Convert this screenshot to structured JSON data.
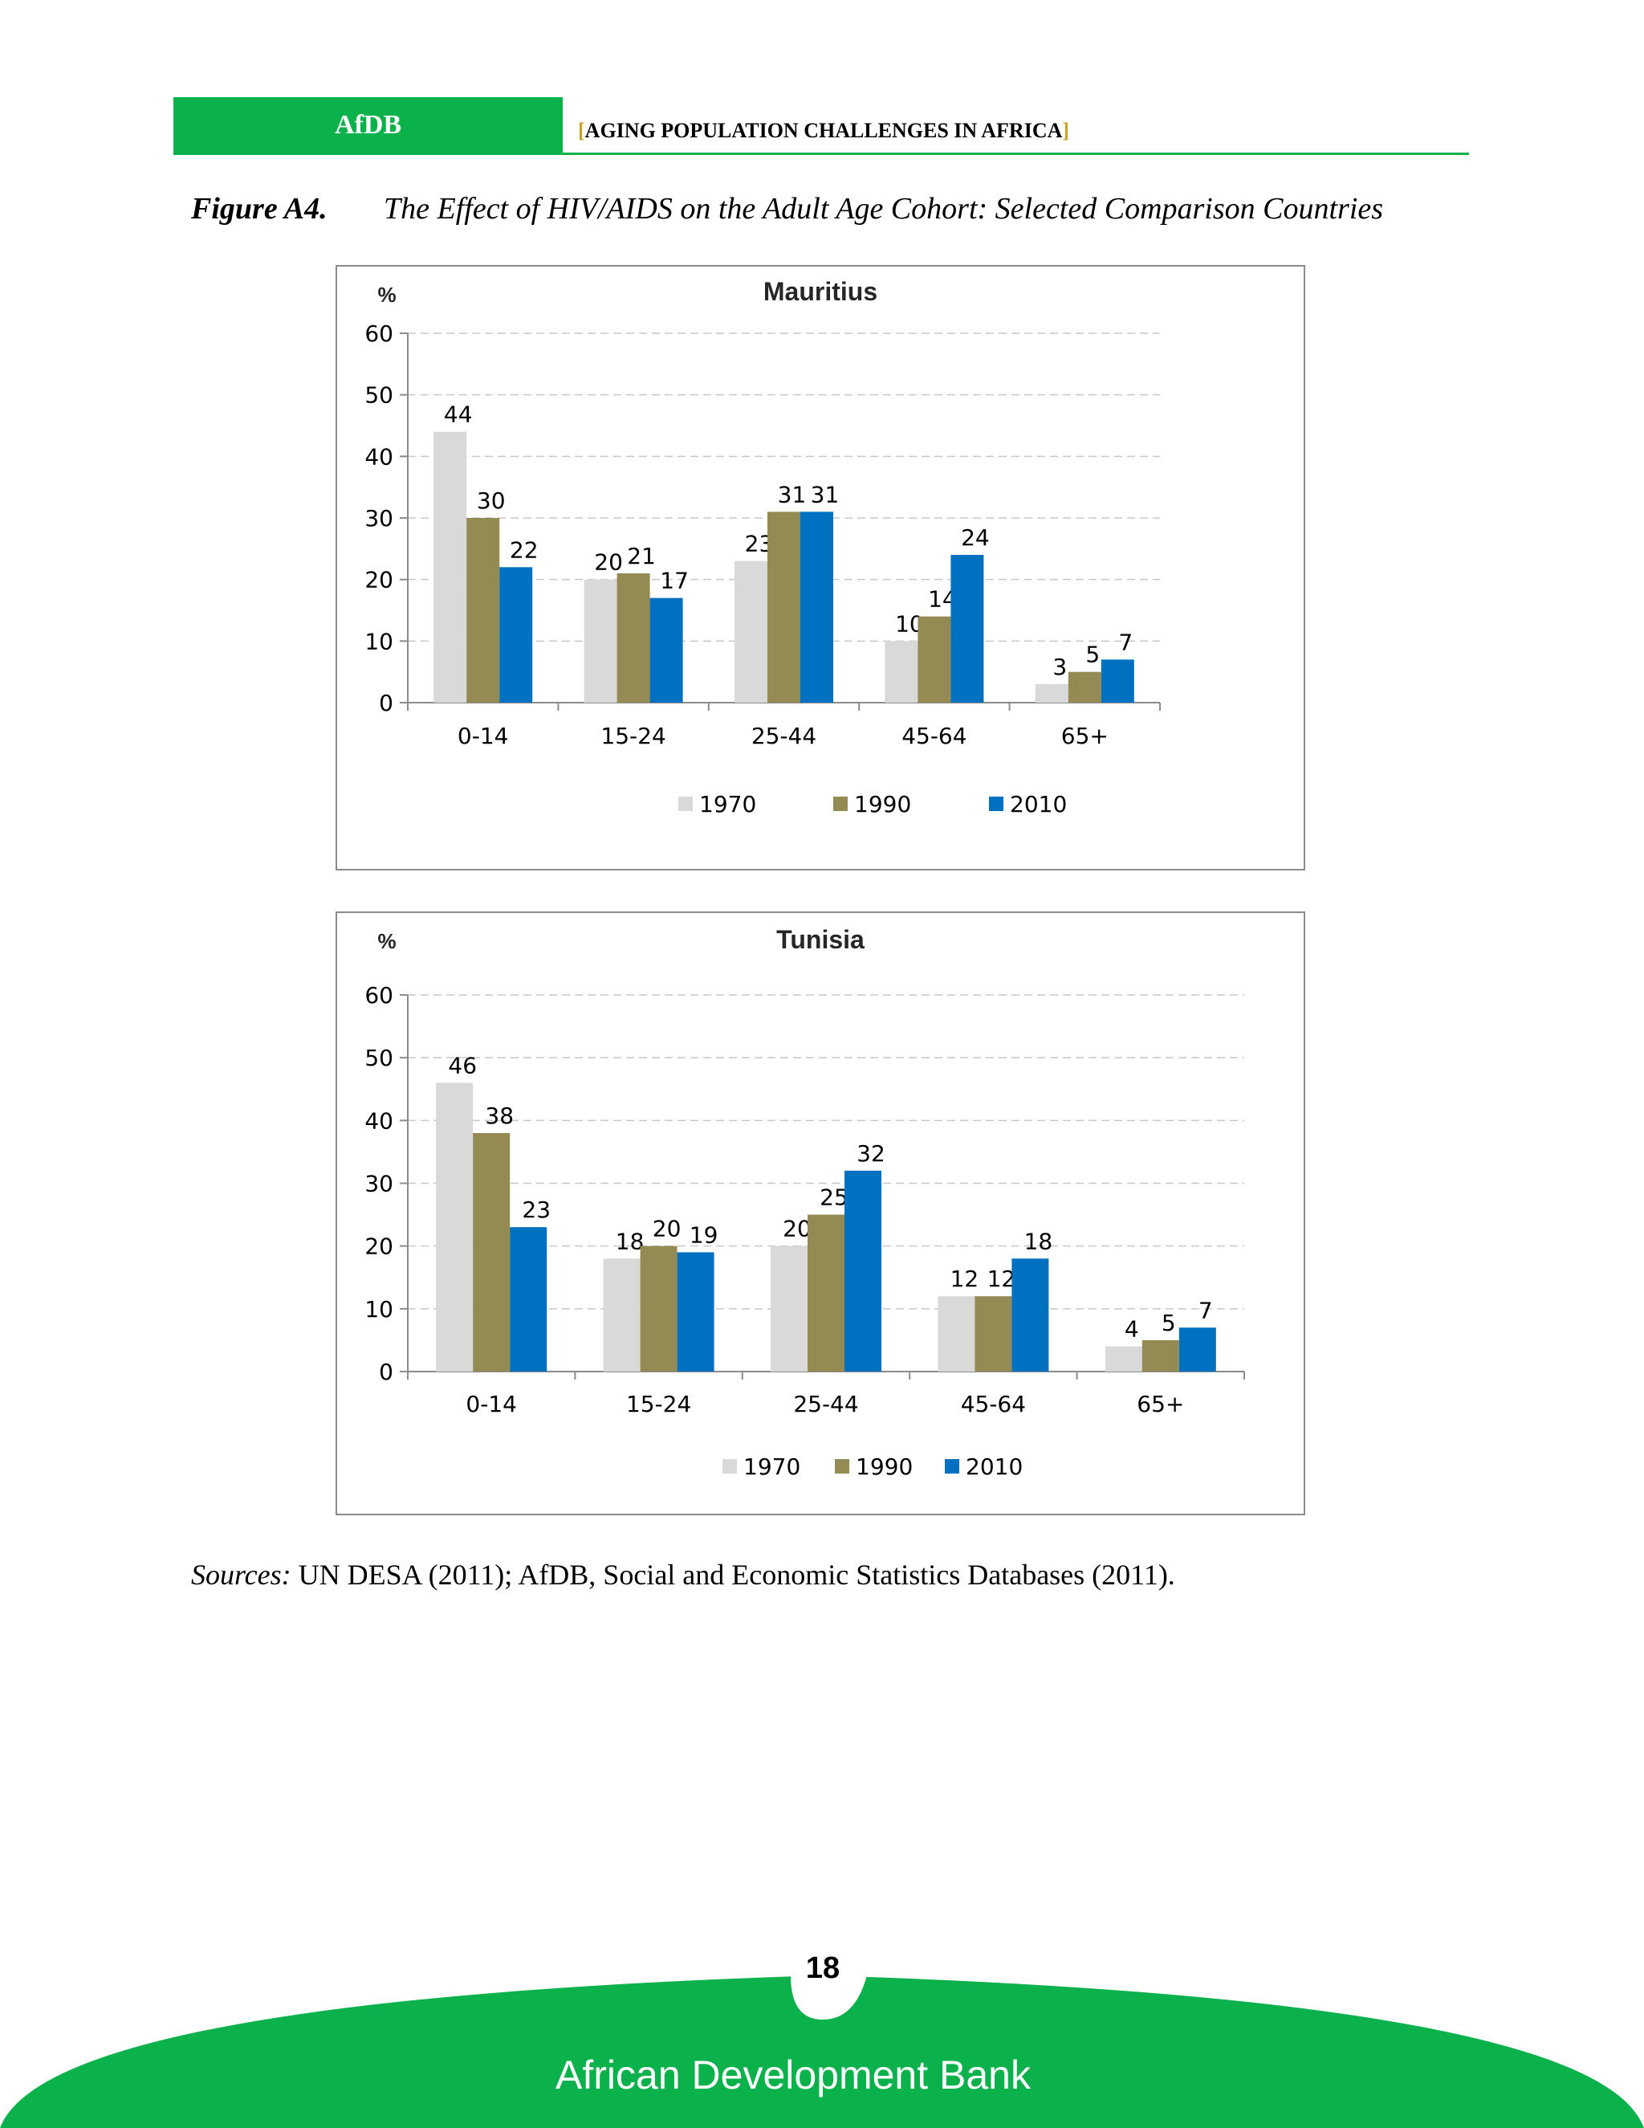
{
  "header": {
    "org": "AfDB",
    "title": "AGING POPULATION CHALLENGES IN AFRICA",
    "bracket_open": "[",
    "bracket_close": "]"
  },
  "figure": {
    "number": "Figure A4.",
    "title": "The Effect of HIV/AIDS on the Adult Age Cohort:  Selected Comparison Countries"
  },
  "sources": {
    "label": "Sources:",
    "text": " UN DESA (2011); AfDB, Social and Economic Statistics Databases (2011)."
  },
  "footer": {
    "page_number": "18",
    "bank_name": "African Development Bank"
  },
  "colors": {
    "brand_green": "#0bb14b",
    "series_1970": "#d9d9d9",
    "series_1990": "#948a54",
    "series_2010": "#0070c0"
  },
  "chart_data": [
    {
      "type": "bar",
      "title": "Mauritius",
      "ylabel": "%",
      "xlabel": "",
      "ylim": [
        0,
        60
      ],
      "yticks": [
        0,
        10,
        20,
        30,
        40,
        50,
        60
      ],
      "grid": true,
      "legend": "bottom",
      "categories": [
        "0-14",
        "15-24",
        "25-44",
        "45-64",
        "65+"
      ],
      "series": [
        {
          "name": "1970",
          "color": "#d9d9d9",
          "values": [
            44,
            20,
            23,
            10,
            3
          ]
        },
        {
          "name": "1990",
          "color": "#948a54",
          "values": [
            30,
            21,
            31,
            14,
            5
          ]
        },
        {
          "name": "2010",
          "color": "#0070c0",
          "values": [
            22,
            17,
            31,
            24,
            7
          ]
        }
      ]
    },
    {
      "type": "bar",
      "title": "Tunisia",
      "ylabel": "%",
      "xlabel": "",
      "ylim": [
        0,
        60
      ],
      "yticks": [
        0,
        10,
        20,
        30,
        40,
        50,
        60
      ],
      "grid": true,
      "legend": "bottom",
      "categories": [
        "0-14",
        "15-24",
        "25-44",
        "45-64",
        "65+"
      ],
      "series": [
        {
          "name": "1970",
          "color": "#d9d9d9",
          "values": [
            46,
            18,
            20,
            12,
            4
          ]
        },
        {
          "name": "1990",
          "color": "#948a54",
          "values": [
            38,
            20,
            25,
            12,
            5
          ]
        },
        {
          "name": "2010",
          "color": "#0070c0",
          "values": [
            23,
            19,
            32,
            18,
            7
          ]
        }
      ]
    }
  ]
}
